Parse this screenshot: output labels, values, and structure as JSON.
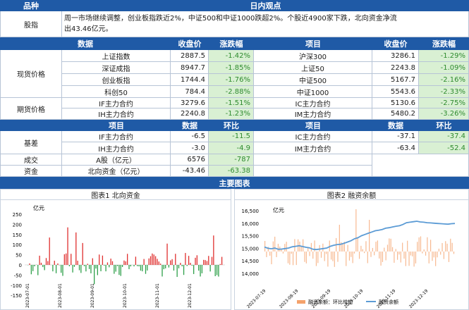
{
  "header": {
    "col1": "品种",
    "col2": "日内观点"
  },
  "index_view": {
    "label": "股指",
    "text_line1": "周一市场继续调整，创业板指跌近2%，中证500和中证1000跌超2%。个股近4900家下跌，北向资金净流",
    "text_line2": "出43.46亿元。"
  },
  "data_section": {
    "label": "数据",
    "headers": [
      "收盘价",
      "涨跌幅",
      "项目",
      "收盘价",
      "涨跌幅"
    ]
  },
  "spot": {
    "label": "现货价格",
    "rows": [
      {
        "name": "上证指数",
        "close": "2887.5",
        "chg": "-1.42%",
        "name2": "沪深300",
        "close2": "3286.1",
        "chg2": "-1.29%"
      },
      {
        "name": "深证成指",
        "close": "8947.7",
        "chg": "-1.85%",
        "name2": "上证50",
        "close2": "2243.8",
        "chg2": "-1.09%"
      },
      {
        "name": "创业板指",
        "close": "1744.4",
        "chg": "-1.76%",
        "name2": "中证500",
        "close2": "5167.7",
        "chg2": "-2.16%"
      },
      {
        "name": "科创50",
        "close": "784.4",
        "chg": "-2.88%",
        "name2": "中证1000",
        "close2": "5543.6",
        "chg2": "-2.33%"
      }
    ]
  },
  "futures": {
    "label": "期货价格",
    "rows": [
      {
        "name": "IF主力合约",
        "close": "3279.6",
        "chg": "-1.51%",
        "name2": "IC主力合约",
        "close2": "5130.6",
        "chg2": "-2.75%"
      },
      {
        "name": "IH主力合约",
        "close": "2240.8",
        "chg": "-1.23%",
        "name2": "IM主力合约",
        "close2": "5480.2",
        "chg2": "-3.26%"
      }
    ]
  },
  "basis_header": [
    "项目",
    "数据",
    "环比",
    "项目",
    "数据",
    "环比"
  ],
  "basis": {
    "label": "基差",
    "rows": [
      {
        "name": "IF主力合约",
        "val": "-6.5",
        "chg": "-11.5",
        "name2": "IC主力合约",
        "val2": "-37.1",
        "chg2": "-37.4"
      },
      {
        "name": "IH主力合约",
        "val": "-3.0",
        "chg": "-4.9",
        "name2": "IM主力合约",
        "val2": "-63.4",
        "chg2": "-52.4"
      }
    ]
  },
  "volume": {
    "label": "成交",
    "name": "A股（亿元）",
    "val": "6576",
    "chg": "-787"
  },
  "capital": {
    "label": "资金",
    "name": "北向资金（亿元）",
    "val": "-43.46",
    "chg": "-63.38"
  },
  "charts_header": "主要图表",
  "chart1": {
    "title": "图表1  北向资金",
    "unit": "亿元",
    "yticks": [
      "250",
      "200",
      "150",
      "100",
      "50",
      "0",
      "-50",
      "-100",
      "-150"
    ],
    "xticks": [
      "2023-07-01",
      "2023-08-01",
      "2023-09-01",
      "2023-10-01",
      "2023-11-01",
      "2023-12-01"
    ]
  },
  "chart2": {
    "title": "图表2  融资余额",
    "unit": "亿元",
    "yticks": [
      "16,500",
      "16,000",
      "15,500",
      "15,000",
      "14,500",
      "14,000"
    ],
    "xticks": [
      "2023-07-19",
      "2023-08-19",
      "2023-09-19",
      "2023-10-19",
      "2023-11-19",
      "2023-12-19"
    ],
    "legend_bar": "融资余额：环比增加",
    "legend_line": "融资余额",
    "bar_color": "#f4a26b",
    "line_color": "#5b9bd5"
  },
  "colors": {
    "header_blue": "#1f5aa6",
    "green_text": "#2e8b2e",
    "green_bg": "#d9f0d3",
    "bar_red": "#e0302f",
    "bar_green": "#2ea04a"
  }
}
